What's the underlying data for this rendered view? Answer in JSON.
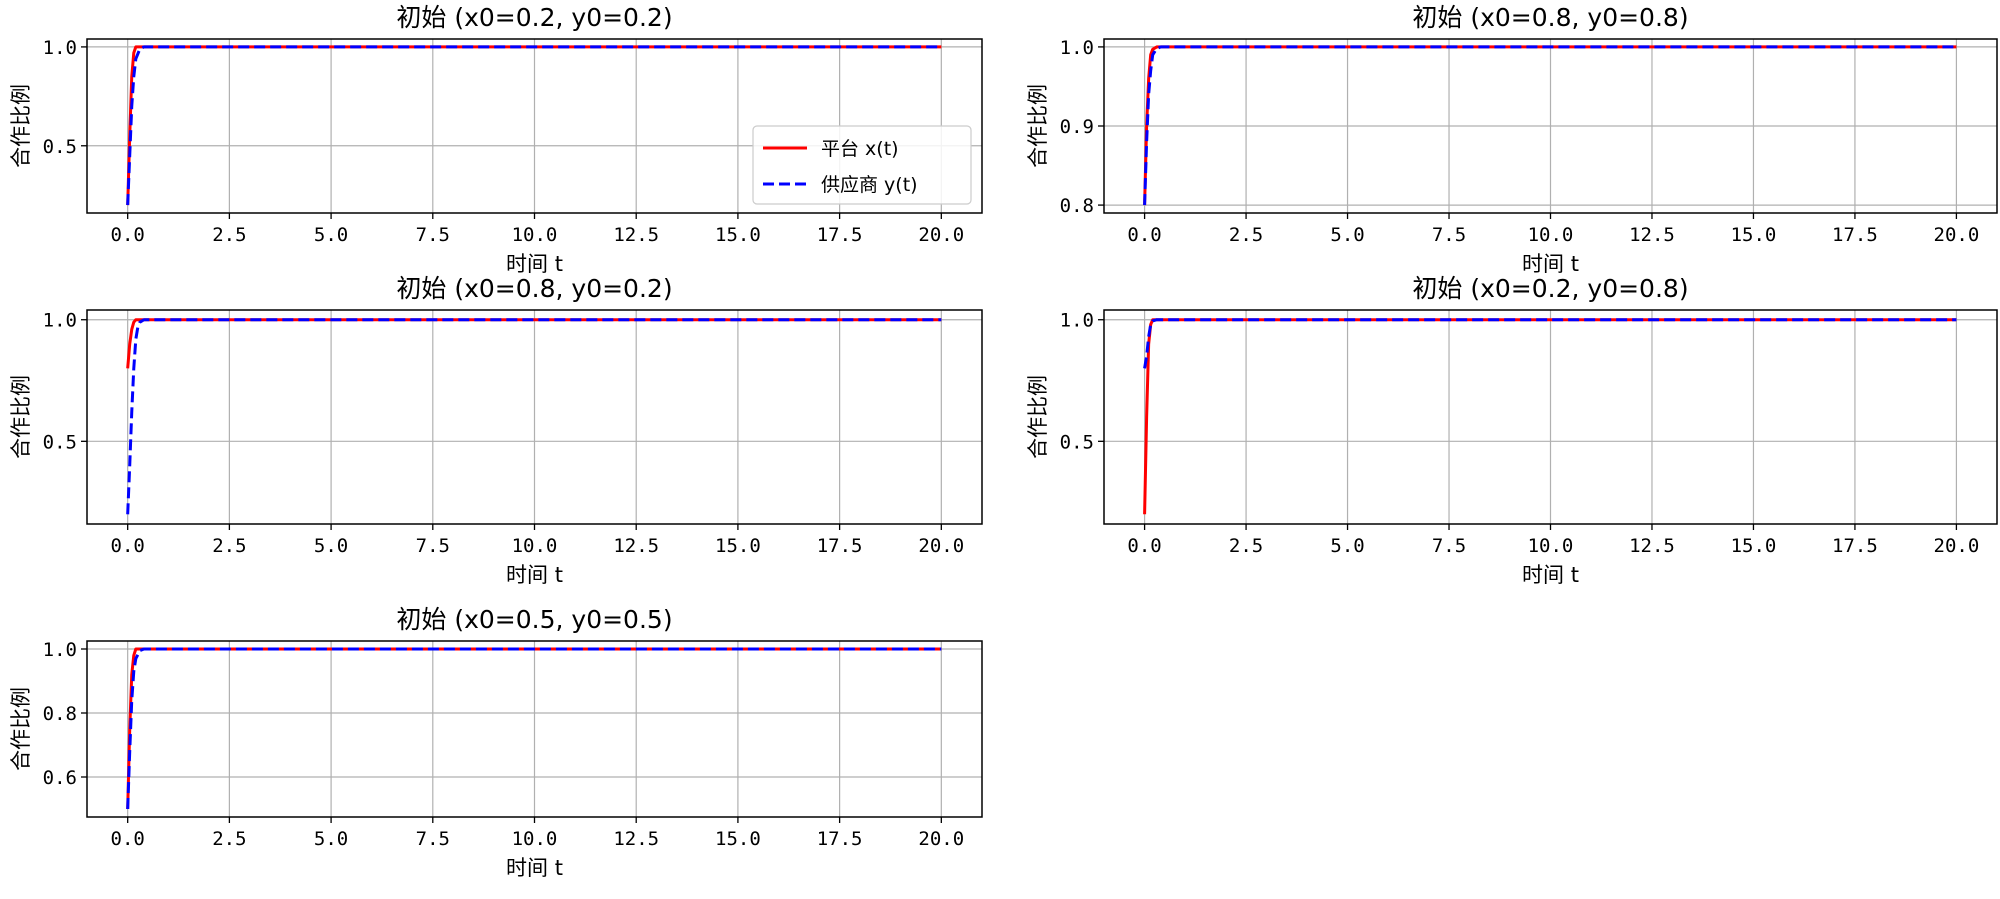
{
  "figure": {
    "legend": {
      "placement": "lower-right",
      "entries": [
        {
          "label": "平台 x(t)",
          "color": "#ff0000",
          "dash": "solid"
        },
        {
          "label": "供应商 y(t)",
          "color": "#0000ff",
          "dash": "dashed"
        }
      ]
    }
  },
  "chart_data": [
    {
      "type": "line",
      "title": "初始 (x0=0.2, y0=0.2)",
      "xlabel": "时间 t",
      "ylabel": "合作比例",
      "xlim": [
        -1,
        21
      ],
      "ylim": [
        0.16,
        1.04
      ],
      "xticks": [
        0,
        2.5,
        5,
        7.5,
        10,
        12.5,
        15,
        17.5,
        20
      ],
      "xtick_labels": [
        "0.0",
        "2.5",
        "5.0",
        "7.5",
        "10.0",
        "12.5",
        "15.0",
        "17.5",
        "20.0"
      ],
      "yticks": [
        0.5,
        1.0
      ],
      "ytick_labels": [
        "0.5",
        "1.0"
      ],
      "grid": true,
      "show_legend": true,
      "series": [
        {
          "name": "平台 x(t)",
          "color": "#ff0000",
          "dash": "solid",
          "x": [
            0,
            0.05,
            0.1,
            0.15,
            0.2,
            0.3,
            20
          ],
          "y": [
            0.2,
            0.55,
            0.85,
            0.97,
            1.0,
            1.0,
            1.0
          ]
        },
        {
          "name": "供应商 y(t)",
          "color": "#0000ff",
          "dash": "dashed",
          "x": [
            0,
            0.05,
            0.1,
            0.15,
            0.2,
            0.3,
            0.4,
            20
          ],
          "y": [
            0.2,
            0.45,
            0.7,
            0.85,
            0.94,
            0.99,
            1.0,
            1.0
          ]
        }
      ]
    },
    {
      "type": "line",
      "title": "初始 (x0=0.8, y0=0.8)",
      "xlabel": "时间 t",
      "ylabel": "合作比例",
      "xlim": [
        -1,
        21
      ],
      "ylim": [
        0.79,
        1.01
      ],
      "xticks": [
        0,
        2.5,
        5,
        7.5,
        10,
        12.5,
        15,
        17.5,
        20
      ],
      "xtick_labels": [
        "0.0",
        "2.5",
        "5.0",
        "7.5",
        "10.0",
        "12.5",
        "15.0",
        "17.5",
        "20.0"
      ],
      "yticks": [
        0.8,
        0.9,
        1.0
      ],
      "ytick_labels": [
        "0.8",
        "0.9",
        "1.0"
      ],
      "grid": true,
      "show_legend": false,
      "series": [
        {
          "name": "平台 x(t)",
          "color": "#ff0000",
          "dash": "solid",
          "x": [
            0,
            0.05,
            0.1,
            0.15,
            0.2,
            0.3,
            20
          ],
          "y": [
            0.8,
            0.9,
            0.96,
            0.99,
            0.997,
            1.0,
            1.0
          ]
        },
        {
          "name": "供应商 y(t)",
          "color": "#0000ff",
          "dash": "dashed",
          "x": [
            0,
            0.05,
            0.1,
            0.15,
            0.2,
            0.3,
            0.4,
            20
          ],
          "y": [
            0.8,
            0.88,
            0.94,
            0.97,
            0.99,
            0.998,
            1.0,
            1.0
          ]
        }
      ]
    },
    {
      "type": "line",
      "title": "初始 (x0=0.8, y0=0.2)",
      "xlabel": "时间 t",
      "ylabel": "合作比例",
      "xlim": [
        -1,
        21
      ],
      "ylim": [
        0.16,
        1.04
      ],
      "xticks": [
        0,
        2.5,
        5,
        7.5,
        10,
        12.5,
        15,
        17.5,
        20
      ],
      "xtick_labels": [
        "0.0",
        "2.5",
        "5.0",
        "7.5",
        "10.0",
        "12.5",
        "15.0",
        "17.5",
        "20.0"
      ],
      "yticks": [
        0.5,
        1.0
      ],
      "ytick_labels": [
        "0.5",
        "1.0"
      ],
      "grid": true,
      "show_legend": false,
      "series": [
        {
          "name": "平台 x(t)",
          "color": "#ff0000",
          "dash": "solid",
          "x": [
            0,
            0.05,
            0.1,
            0.15,
            0.2,
            0.3,
            20
          ],
          "y": [
            0.8,
            0.9,
            0.96,
            0.99,
            1.0,
            1.0,
            1.0
          ]
        },
        {
          "name": "供应商 y(t)",
          "color": "#0000ff",
          "dash": "dashed",
          "x": [
            0,
            0.05,
            0.1,
            0.15,
            0.2,
            0.25,
            0.3,
            0.4,
            20
          ],
          "y": [
            0.2,
            0.4,
            0.62,
            0.8,
            0.92,
            0.97,
            0.99,
            1.0,
            1.0
          ]
        }
      ]
    },
    {
      "type": "line",
      "title": "初始 (x0=0.2, y0=0.8)",
      "xlabel": "时间 t",
      "ylabel": "合作比例",
      "xlim": [
        -1,
        21
      ],
      "ylim": [
        0.16,
        1.04
      ],
      "xticks": [
        0,
        2.5,
        5,
        7.5,
        10,
        12.5,
        15,
        17.5,
        20
      ],
      "xtick_labels": [
        "0.0",
        "2.5",
        "5.0",
        "7.5",
        "10.0",
        "12.5",
        "15.0",
        "17.5",
        "20.0"
      ],
      "yticks": [
        0.5,
        1.0
      ],
      "ytick_labels": [
        "0.5",
        "1.0"
      ],
      "grid": true,
      "show_legend": false,
      "series": [
        {
          "name": "平台 x(t)",
          "color": "#ff0000",
          "dash": "solid",
          "x": [
            0,
            0.05,
            0.1,
            0.15,
            0.2,
            0.3,
            20
          ],
          "y": [
            0.2,
            0.6,
            0.9,
            0.98,
            1.0,
            1.0,
            1.0
          ]
        },
        {
          "name": "供应商 y(t)",
          "color": "#0000ff",
          "dash": "dashed",
          "x": [
            0,
            0.05,
            0.1,
            0.15,
            0.2,
            0.3,
            20
          ],
          "y": [
            0.8,
            0.85,
            0.93,
            0.98,
            0.995,
            1.0,
            1.0
          ]
        }
      ]
    },
    {
      "type": "line",
      "title": "初始 (x0=0.5, y0=0.5)",
      "xlabel": "时间 t",
      "ylabel": "合作比例",
      "xlim": [
        -1,
        21
      ],
      "ylim": [
        0.475,
        1.025
      ],
      "xticks": [
        0,
        2.5,
        5,
        7.5,
        10,
        12.5,
        15,
        17.5,
        20
      ],
      "xtick_labels": [
        "0.0",
        "2.5",
        "5.0",
        "7.5",
        "10.0",
        "12.5",
        "15.0",
        "17.5",
        "20.0"
      ],
      "yticks": [
        0.6,
        0.8,
        1.0
      ],
      "ytick_labels": [
        "0.6",
        "0.8",
        "1.0"
      ],
      "grid": true,
      "show_legend": false,
      "series": [
        {
          "name": "平台 x(t)",
          "color": "#ff0000",
          "dash": "solid",
          "x": [
            0,
            0.05,
            0.1,
            0.15,
            0.2,
            0.3,
            20
          ],
          "y": [
            0.5,
            0.75,
            0.92,
            0.98,
            1.0,
            1.0,
            1.0
          ]
        },
        {
          "name": "供应商 y(t)",
          "color": "#0000ff",
          "dash": "dashed",
          "x": [
            0,
            0.05,
            0.1,
            0.15,
            0.2,
            0.3,
            0.4,
            20
          ],
          "y": [
            0.5,
            0.68,
            0.84,
            0.93,
            0.97,
            0.995,
            1.0,
            1.0
          ]
        }
      ]
    }
  ]
}
